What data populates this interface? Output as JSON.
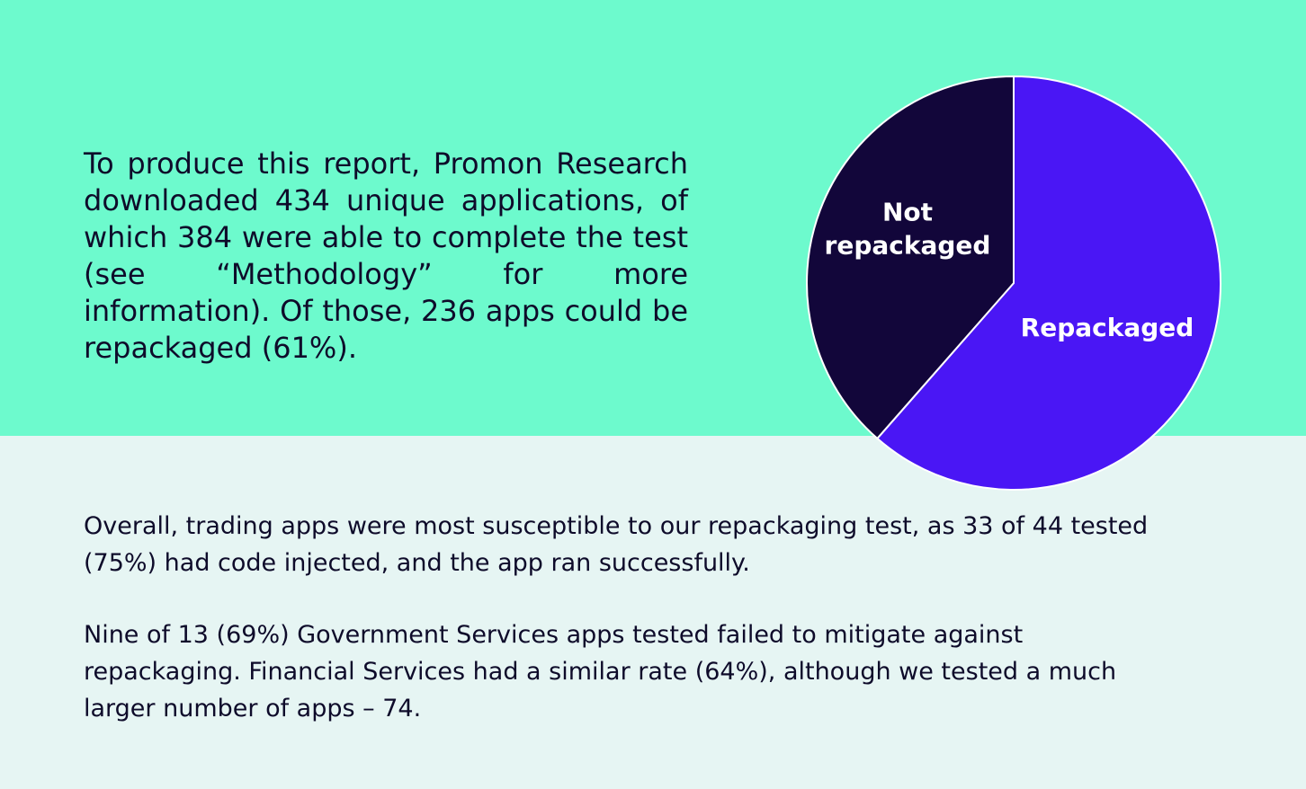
{
  "intro_text": "To produce this report, Promon Research downloaded 434 unique applications, of which 384 were able to complete the test (see “Methodology” for more information). Of those, 236 apps could be repackaged (61%).",
  "paragraphs": [
    "Overall, trading apps were most susceptible to our repackaging test, as 33 of 44 tested (75%) had code injected, and the app ran successfully.",
    "Nine of 13 (69%) Government Services apps tested failed to mitigate against repackaging. Financial Services had a similar rate (64%), although we tested a much larger number of apps – 74."
  ],
  "colors": {
    "top_background": "#6dfacd",
    "bottom_background": "#e6f5f3",
    "repackaged": "#4a16f5",
    "not_repackaged": "#12063a",
    "text": "#0e0b2a"
  },
  "chart_data": {
    "type": "pie",
    "title": "",
    "slices": [
      {
        "label": "Repackaged",
        "label_lines": [
          "Repackaged"
        ],
        "value": 236,
        "color": "#4a16f5"
      },
      {
        "label": "Not repackaged",
        "label_lines": [
          "Not",
          "repackaged"
        ],
        "value": 148,
        "color": "#12063a"
      }
    ],
    "start": "12 o'clock",
    "direction": "clockwise",
    "legend": "none"
  }
}
